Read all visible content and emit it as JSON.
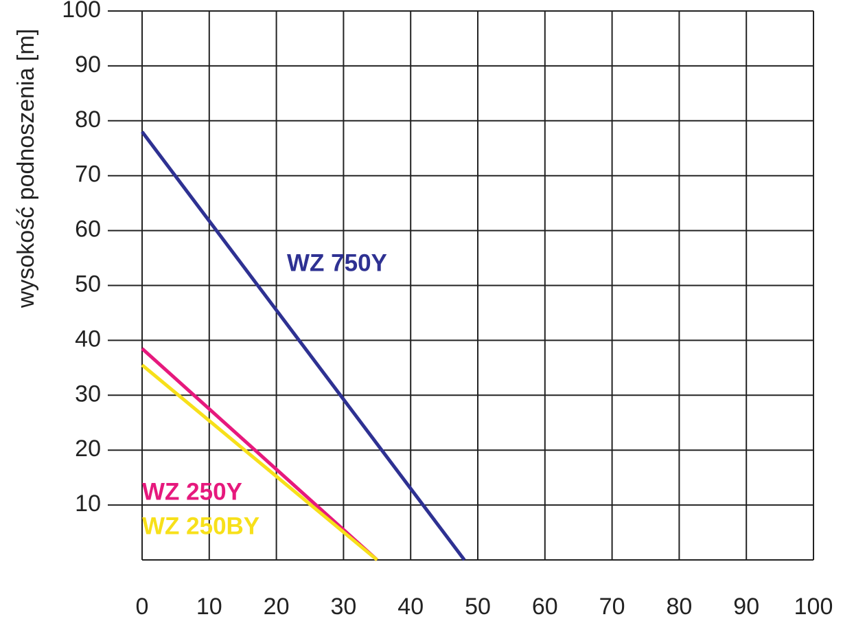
{
  "chart_data": {
    "type": "line",
    "y_label": "wysokość podnoszenia [m]",
    "xlim": [
      0,
      100
    ],
    "xticks": [
      0,
      10,
      20,
      30,
      40,
      50,
      60,
      70,
      80,
      90,
      100
    ],
    "ylim": [
      0,
      100
    ],
    "yticks": [
      10,
      20,
      30,
      40,
      50,
      60,
      70,
      80,
      90,
      100
    ],
    "grid": true,
    "series": [
      {
        "name": "WZ 750Y",
        "color": "#2e3192",
        "x": [
          0,
          48
        ],
        "values": [
          78,
          0
        ]
      },
      {
        "name": "WZ 250Y",
        "color": "#e6197d",
        "x": [
          0,
          35
        ],
        "values": [
          38.5,
          0
        ]
      },
      {
        "name": "WZ 250BY",
        "color": "#f7e01a",
        "x": [
          0,
          35
        ],
        "values": [
          35.5,
          0
        ]
      }
    ]
  }
}
